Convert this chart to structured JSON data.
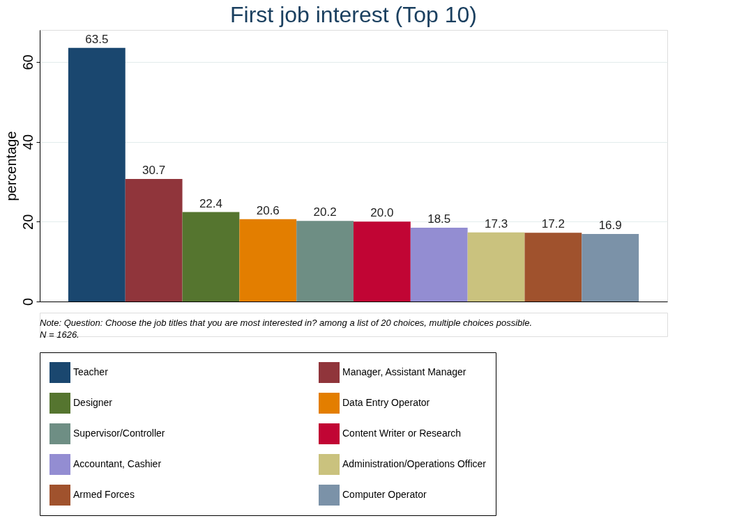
{
  "chart_data": {
    "type": "bar",
    "title": "First job interest (Top 10)",
    "ylabel": "percentage",
    "categories": [
      null
    ],
    "series": [
      {
        "name": "Teacher",
        "color": "#1a476f",
        "values": [
          63.5
        ],
        "value_labels": [
          "63.5"
        ]
      },
      {
        "name": "Manager, Assistant Manager",
        "color": "#90353b",
        "values": [
          30.7
        ],
        "value_labels": [
          "30.7"
        ]
      },
      {
        "name": "Designer",
        "color": "#55752f",
        "values": [
          22.4
        ],
        "value_labels": [
          "22.4"
        ]
      },
      {
        "name": "Data Entry Operator",
        "color": "#e37e00",
        "values": [
          20.6
        ],
        "value_labels": [
          "20.6"
        ]
      },
      {
        "name": "Supervisor/Controller",
        "color": "#6e8e84",
        "values": [
          20.2
        ],
        "value_labels": [
          "20.2"
        ]
      },
      {
        "name": "Content Writer or Research",
        "color": "#c10534",
        "values": [
          20.0
        ],
        "value_labels": [
          "20.0"
        ]
      },
      {
        "name": "Accountant, Cashier",
        "color": "#938dd2",
        "values": [
          18.5
        ],
        "value_labels": [
          "18.5"
        ]
      },
      {
        "name": "Administration/Operations Officer",
        "color": "#cac27e",
        "values": [
          17.3
        ],
        "value_labels": [
          "17.3"
        ]
      },
      {
        "name": "Armed Forces",
        "color": "#a0522d",
        "values": [
          17.2
        ],
        "value_labels": [
          "17.2"
        ]
      },
      {
        "name": "Computer Operator",
        "color": "#7b92a8",
        "values": [
          16.9
        ],
        "value_labels": [
          "16.9"
        ]
      }
    ],
    "ylim": [
      0,
      68
    ],
    "yticks": [
      0,
      20,
      40,
      60
    ],
    "grid": "y",
    "legend": "bottom",
    "annotations": [
      "Note: Question: Choose the job titles that you are most interested in? among a list of 20 choices, multiple choices possible.",
      "N = 1626."
    ]
  }
}
